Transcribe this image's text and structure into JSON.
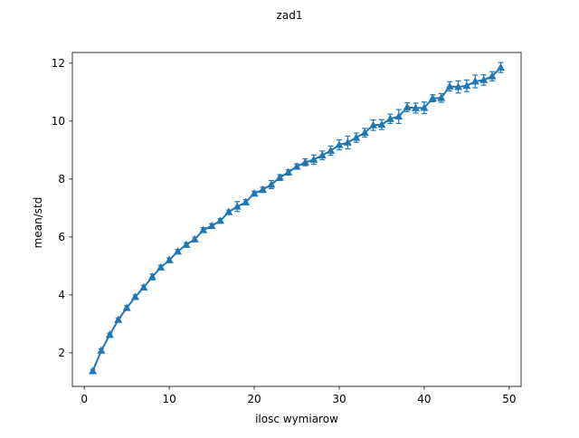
{
  "chart_data": {
    "type": "line",
    "title": "zad1",
    "xlabel": "ilosc wymiarow",
    "ylabel": "mean/std",
    "xlim": [
      -1.4,
      51.4
    ],
    "ylim": [
      0.84,
      12.37
    ],
    "xticks": [
      0,
      10,
      20,
      30,
      40,
      50
    ],
    "yticks": [
      2,
      4,
      6,
      8,
      10,
      12
    ],
    "grid": false,
    "legend": "none",
    "marker": "triangle-up",
    "color": "#1f77b4",
    "series": [
      {
        "x": [
          1,
          2,
          3,
          4,
          5,
          6,
          7,
          8,
          9,
          10,
          11,
          12,
          13,
          14,
          15,
          16,
          17,
          18,
          19,
          20,
          21,
          22,
          23,
          24,
          25,
          26,
          27,
          28,
          29,
          30,
          31,
          32,
          33,
          34,
          35,
          36,
          37,
          38,
          39,
          40,
          41,
          42,
          43,
          44,
          45,
          46,
          47,
          48,
          49
        ],
        "values": [
          1.37,
          2.08,
          2.62,
          3.14,
          3.55,
          3.93,
          4.26,
          4.62,
          4.95,
          5.2,
          5.5,
          5.73,
          5.92,
          6.24,
          6.38,
          6.56,
          6.86,
          7.05,
          7.2,
          7.5,
          7.63,
          7.81,
          8.05,
          8.23,
          8.43,
          8.58,
          8.67,
          8.82,
          8.98,
          9.18,
          9.26,
          9.43,
          9.6,
          9.86,
          9.88,
          10.08,
          10.16,
          10.48,
          10.45,
          10.46,
          10.79,
          10.8,
          11.2,
          11.18,
          11.22,
          11.37,
          11.42,
          11.55,
          11.85
        ],
        "error": [
          0.06,
          0.06,
          0.06,
          0.06,
          0.07,
          0.07,
          0.07,
          0.1,
          0.07,
          0.07,
          0.07,
          0.07,
          0.07,
          0.08,
          0.08,
          0.07,
          0.07,
          0.17,
          0.09,
          0.08,
          0.09,
          0.14,
          0.1,
          0.09,
          0.09,
          0.12,
          0.16,
          0.15,
          0.16,
          0.17,
          0.22,
          0.16,
          0.15,
          0.18,
          0.17,
          0.16,
          0.24,
          0.15,
          0.17,
          0.2,
          0.12,
          0.15,
          0.16,
          0.21,
          0.2,
          0.22,
          0.18,
          0.16,
          0.17
        ]
      }
    ]
  }
}
